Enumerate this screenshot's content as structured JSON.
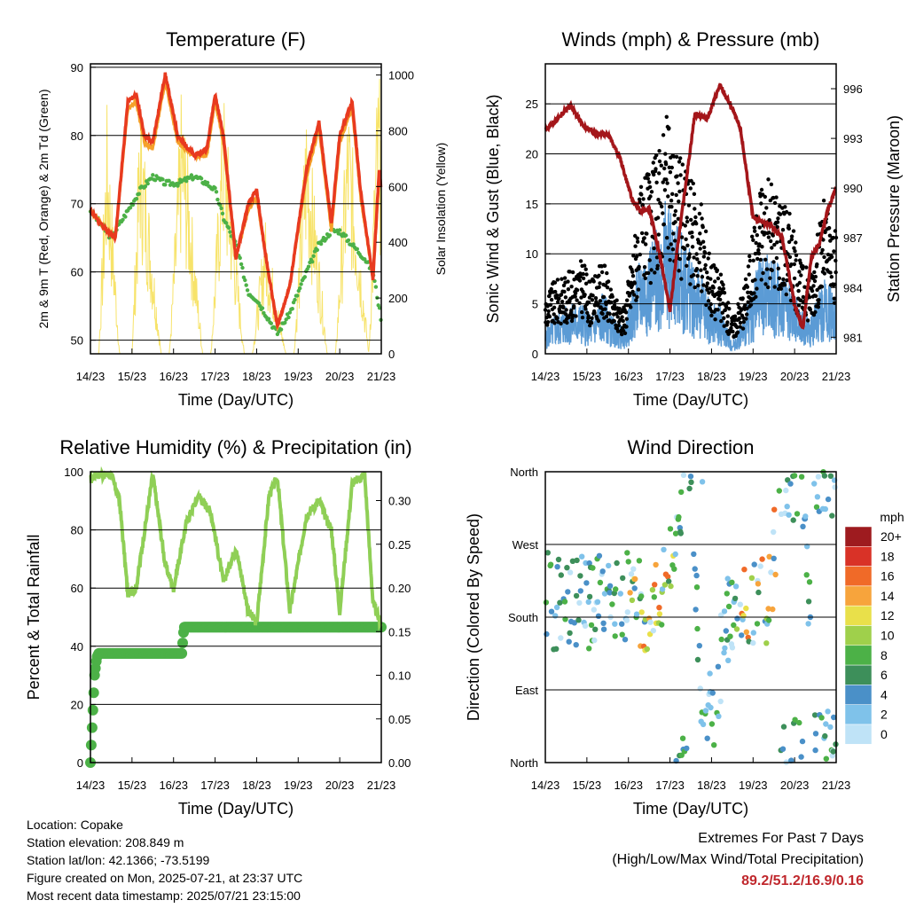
{
  "x_ticks": [
    "14/23",
    "15/23",
    "16/23",
    "17/23",
    "18/23",
    "19/23",
    "20/23",
    "21/23"
  ],
  "colors": {
    "temp2m": "#e83a1f",
    "temp9m": "#f5a12a",
    "dewpoint": "#4cb147",
    "solar": "#f7e36a",
    "wind": "#5b9bd5",
    "gust": "#000000",
    "pressure": "#a4161a",
    "rh": "#8fcf56",
    "precip": "#4cb147",
    "extremes": "#c0282d"
  },
  "info": {
    "location": "Location: Copake",
    "elevation": "Station elevation: 208.849 m",
    "latlon": "Station lat/lon: 42.1366; -73.5199",
    "created": "Figure created on Mon, 2025-07-21, at 23:37 UTC",
    "recent": "Most recent data timestamp: 2025/07/21 23:15:00"
  },
  "extremes": {
    "title": "Extremes For Past 7 Days",
    "subtitle": "(High/Low/Max Wind/Total Precipitation)",
    "values": "89.2/51.2/16.9/0.16"
  },
  "chart_data": [
    {
      "type": "line",
      "title": "Temperature (F)",
      "xlabel": "Time (Day/UTC)",
      "ylabel": "2m & 9m T (Red, Orange) & 2m Td (Green)",
      "ylabel_right": "Solar Insolation (Yellow)",
      "ylim": [
        48,
        90.5
      ],
      "ylim_right": [
        0,
        1040
      ],
      "yticks": [
        "50",
        "60",
        "70",
        "80",
        "90"
      ],
      "yticks_right": [
        "0",
        "200",
        "400",
        "600",
        "800",
        "1000"
      ],
      "series": [
        {
          "x": [
            14.0,
            14.4,
            14.6,
            14.9,
            15.1,
            15.3,
            15.5,
            15.8,
            16.1,
            16.5,
            16.8,
            17.0,
            17.2,
            17.5,
            17.8,
            18.0,
            18.2,
            18.5,
            18.8,
            19.2,
            19.5,
            19.8,
            20.0,
            20.3,
            20.5,
            20.8,
            20.95,
            21.0
          ],
          "values": [
            69,
            66,
            65,
            85,
            86,
            80,
            79,
            89,
            80,
            77,
            78,
            86,
            80,
            62,
            70,
            72,
            63,
            52,
            58,
            75,
            82,
            67,
            80,
            85,
            72,
            59,
            75,
            72
          ]
        },
        {
          "x": [
            14.0,
            14.4,
            14.6,
            14.9,
            15.1,
            15.3,
            15.5,
            15.8,
            16.1,
            16.5,
            16.8,
            17.0,
            17.2,
            17.5,
            17.8,
            18.0,
            18.2,
            18.5,
            18.8,
            19.2,
            19.5,
            19.8,
            20.0,
            20.3,
            20.5,
            20.8,
            20.95,
            21.0
          ],
          "values": [
            69,
            66,
            65,
            84,
            85,
            79,
            78,
            88,
            79,
            77,
            77,
            85,
            79,
            62,
            69,
            71,
            63,
            52,
            58,
            74,
            81,
            66,
            79,
            84,
            71,
            59,
            74,
            72
          ]
        },
        {
          "x": [
            14.0,
            14.5,
            14.8,
            15.2,
            15.5,
            15.8,
            16.1,
            16.5,
            16.8,
            17.0,
            17.2,
            17.5,
            17.8,
            18.0,
            18.2,
            18.5,
            18.8,
            19.2,
            19.5,
            19.8,
            20.0,
            20.3,
            20.6,
            20.8,
            21.0
          ],
          "values": [
            69,
            65,
            68,
            72,
            74,
            73,
            73,
            74,
            73,
            72,
            68,
            64,
            57,
            56,
            54,
            51,
            54,
            60,
            64,
            66,
            66,
            64,
            62,
            60,
            53
          ]
        },
        {
          "x": [
            14.2,
            14.4,
            14.7,
            15.0,
            15.2,
            15.7,
            15.9,
            16.2,
            16.7,
            16.9,
            17.2,
            17.7,
            17.9,
            18.2,
            18.7,
            18.9,
            19.2,
            19.7,
            19.9,
            20.2,
            20.7,
            20.9
          ],
          "values": [
            0,
            920,
            0,
            0,
            960,
            0,
            0,
            1000,
            0,
            0,
            980,
            0,
            0,
            500,
            0,
            0,
            940,
            0,
            0,
            960,
            0,
            1000
          ]
        }
      ]
    },
    {
      "type": "scatter",
      "title": "Winds (mph) & Pressure (mb)",
      "xlabel": "Time (Day/UTC)",
      "ylabel": "Sonic Wind & Gust (Blue, Black)",
      "ylabel_right": "Station Pressure (Maroon)",
      "ylim": [
        0,
        29
      ],
      "ylim_right": [
        980,
        997.5
      ],
      "yticks": [
        "0",
        "5",
        "10",
        "15",
        "20",
        "25"
      ],
      "yticks_right": [
        "981",
        "984",
        "987",
        "990",
        "993",
        "996"
      ],
      "series": [
        {
          "x": [
            14.0,
            14.2,
            14.6,
            14.9,
            15.1,
            15.4,
            15.6,
            15.9,
            16.3,
            16.6,
            16.9,
            17.2,
            17.5,
            17.8,
            18.0,
            18.2,
            18.5,
            18.8,
            19.2,
            19.6,
            19.9,
            20.1,
            20.4,
            20.7,
            21.0
          ],
          "values": [
            2,
            3,
            4,
            4,
            3,
            5,
            3,
            2,
            8,
            9,
            12,
            10,
            8,
            6,
            4,
            4,
            1,
            3,
            8,
            7,
            6,
            4,
            3,
            6,
            5
          ]
        },
        {
          "x": [
            14.0,
            14.2,
            14.6,
            14.9,
            15.1,
            15.4,
            15.6,
            15.9,
            16.3,
            16.6,
            16.9,
            17.2,
            17.5,
            17.8,
            18.0,
            18.2,
            18.5,
            18.8,
            19.2,
            19.6,
            19.9,
            20.1,
            20.4,
            20.7,
            21.0
          ],
          "values": [
            5,
            6,
            7,
            8,
            6,
            8,
            5,
            4,
            14,
            16,
            20,
            17,
            15,
            12,
            8,
            7,
            3,
            6,
            15,
            14,
            12,
            8,
            7,
            13,
            10
          ]
        },
        {
          "x": [
            14.0,
            14.3,
            14.6,
            14.9,
            15.2,
            15.5,
            15.8,
            16.1,
            16.3,
            16.5,
            16.8,
            17.0,
            17.2,
            17.6,
            17.9,
            18.2,
            18.5,
            18.7,
            19.0,
            19.4,
            19.7,
            20.0,
            20.2,
            20.4,
            20.6,
            20.8,
            21.0
          ],
          "values": [
            993.5,
            994.2,
            995,
            993.8,
            993.3,
            993.3,
            991.8,
            989.2,
            988.6,
            988.8,
            985.4,
            982.6,
            986.8,
            994.5,
            994.2,
            996.2,
            994.8,
            993.5,
            988.2,
            987.8,
            987.0,
            983.0,
            981.5,
            985.8,
            986.7,
            988.7,
            990.0
          ]
        }
      ]
    },
    {
      "type": "line",
      "title": "Relative Humidity (%) & Precipitation (in)",
      "xlabel": "Time (Day/UTC)",
      "ylabel": "Percent & Total Rainfall",
      "ylim": [
        0,
        100
      ],
      "ylim_right": [
        0,
        0.333
      ],
      "yticks": [
        "0",
        "20",
        "40",
        "60",
        "80",
        "100"
      ],
      "yticks_right": [
        "0.00",
        "0.05",
        "0.10",
        "0.15",
        "0.20",
        "0.25",
        "0.30"
      ],
      "series": [
        {
          "x": [
            14.0,
            14.1,
            14.5,
            14.7,
            14.9,
            15.1,
            15.5,
            15.8,
            16.0,
            16.3,
            16.6,
            16.9,
            17.2,
            17.5,
            17.8,
            18.0,
            18.3,
            18.5,
            18.8,
            19.2,
            19.5,
            19.8,
            20.0,
            20.3,
            20.6,
            20.8,
            21.0
          ],
          "values": [
            97,
            99,
            99,
            90,
            58,
            60,
            99,
            68,
            60,
            82,
            92,
            86,
            62,
            74,
            52,
            48,
            92,
            98,
            52,
            85,
            90,
            80,
            52,
            96,
            99,
            55,
            47
          ]
        },
        {
          "x": [
            14.0,
            14.05,
            14.1,
            14.15,
            14.2,
            16.2,
            16.25,
            21.0
          ],
          "values": [
            0,
            0.05,
            0.1,
            0.12,
            0.125,
            0.125,
            0.155,
            0.155
          ]
        }
      ]
    },
    {
      "type": "scatter",
      "title": "Wind Direction",
      "xlabel": "Time (Day/UTC)",
      "ylabel": "Direction (Colored By Speed)",
      "yticks": [
        "North",
        "East",
        "South",
        "West",
        "North"
      ],
      "legend_title": "mph",
      "legend_labels": [
        "0",
        "2",
        "4",
        "6",
        "8",
        "10",
        "12",
        "14",
        "16",
        "18",
        "20+"
      ],
      "legend_colors": [
        "#bfe3f7",
        "#7fc2ea",
        "#4a90c8",
        "#3d8f5a",
        "#4cb147",
        "#9fd04b",
        "#e9e04a",
        "#f7a43c",
        "#f06a28",
        "#d93227",
        "#9e1b1f"
      ],
      "series": [
        {
          "name": "",
          "x": [
            16.1,
            16.4,
            16.7,
            16.9,
            17.2,
            17.5,
            17.8,
            18.5,
            18.8,
            19.1,
            19.4,
            19.7,
            20.2,
            20.5,
            20.8
          ],
          "values": [
            200,
            195,
            200,
            205,
            340,
            350,
            10,
            200,
            195,
            200,
            205,
            360,
            350,
            10,
            5
          ]
        }
      ]
    }
  ]
}
